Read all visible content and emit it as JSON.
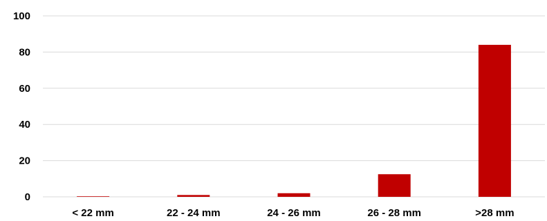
{
  "chart_data": {
    "type": "bar",
    "categories": [
      "< 22 mm",
      "22 - 24 mm",
      "24 - 26 mm",
      "26 - 28 mm",
      ">28 mm"
    ],
    "values": [
      0.3,
      1,
      2,
      12.5,
      84
    ],
    "ylim": [
      0,
      100
    ],
    "yticks": [
      0,
      20,
      40,
      60,
      80,
      100
    ],
    "grid": true,
    "bar_color": "#c00000",
    "grid_color": "#d9d9d9"
  }
}
